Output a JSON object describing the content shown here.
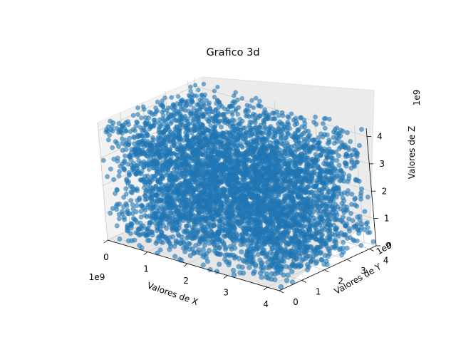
{
  "chart_data": {
    "type": "scatter",
    "projection": "3d",
    "title": "Grafico 3d",
    "xlabel": "Valores de X",
    "ylabel": "Valores de Y",
    "zlabel": "Valores de Z",
    "x_ticks": [
      "0",
      "1",
      "2",
      "3",
      "4"
    ],
    "y_ticks": [
      "0",
      "1",
      "2",
      "3",
      "4"
    ],
    "z_ticks": [
      "0",
      "1",
      "2",
      "3",
      "4"
    ],
    "x_offset_label": "1e9",
    "y_offset_label": "1e9",
    "z_offset_label": "1e9",
    "xlim": [
      0,
      4300000000
    ],
    "ylim": [
      0,
      4300000000
    ],
    "zlim": [
      0,
      4300000000
    ],
    "grid": true,
    "series": [
      {
        "marker_color": "#1f77b4",
        "marker_alpha": 0.6,
        "distribution": "uniform random in [0, 4.3e9] on each axis",
        "point_count_estimate": 5000
      }
    ]
  }
}
